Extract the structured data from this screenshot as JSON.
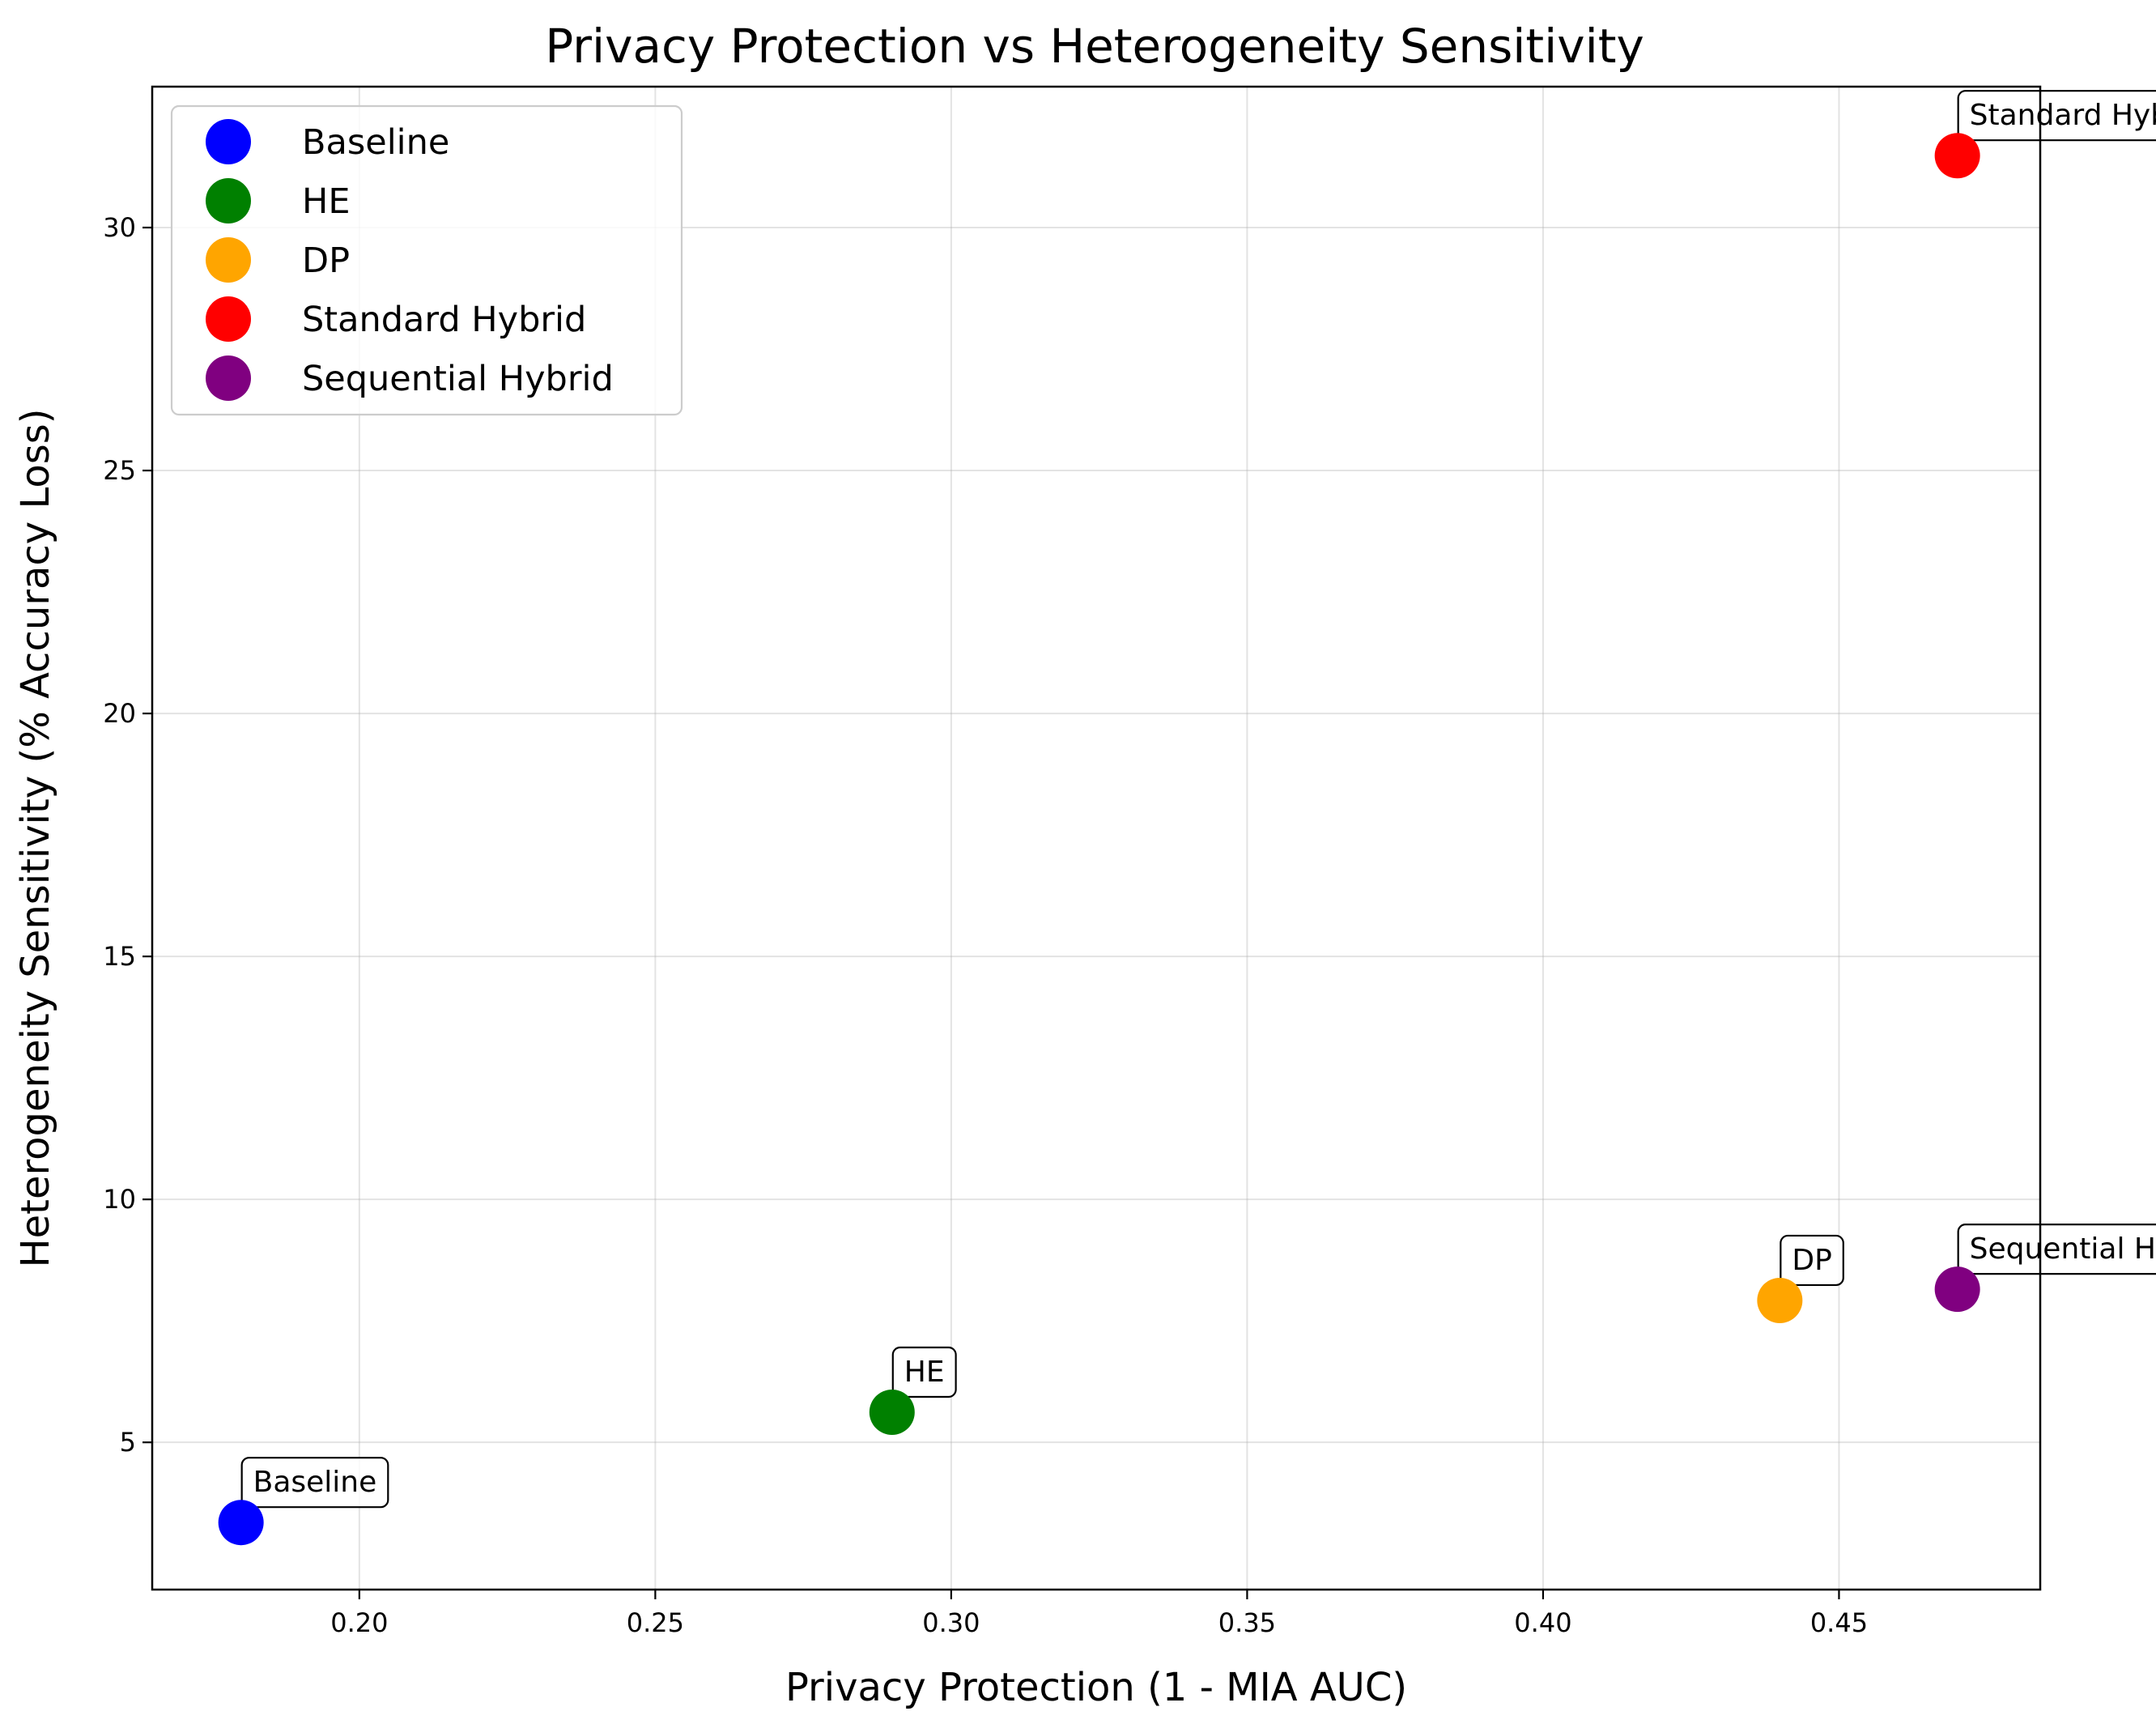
{
  "chart_data": {
    "type": "scatter",
    "title": "Privacy Protection vs Heterogeneity Sensitivity",
    "xlabel": "Privacy Protection (1 - MIA AUC)",
    "ylabel": "Heterogeneity Sensitivity (% Accuracy Loss)",
    "xlim": [
      0.165,
      0.484
    ],
    "ylim": [
      1.97,
      32.9
    ],
    "xticks": [
      0.2,
      0.25,
      0.3,
      0.35,
      0.4,
      0.45
    ],
    "xtick_labels": [
      "0.20",
      "0.25",
      "0.30",
      "0.35",
      "0.40",
      "0.45"
    ],
    "yticks": [
      5,
      10,
      15,
      20,
      25,
      30
    ],
    "ytick_labels": [
      "5",
      "10",
      "15",
      "20",
      "25",
      "30"
    ],
    "grid": true,
    "legend_position": "top-left",
    "series": [
      {
        "name": "Baseline",
        "color": "#0000ff",
        "x": 0.18,
        "y": 3.35,
        "annotation": "Baseline"
      },
      {
        "name": "HE",
        "color": "#008000",
        "x": 0.29,
        "y": 5.62,
        "annotation": "HE"
      },
      {
        "name": "DP",
        "color": "#ffa500",
        "x": 0.44,
        "y": 7.92,
        "annotation": "DP"
      },
      {
        "name": "Standard Hybrid",
        "color": "#ff0000",
        "x": 0.47,
        "y": 31.48,
        "annotation": "Standard Hybrid"
      },
      {
        "name": "Sequential Hybrid",
        "color": "#800080",
        "x": 0.47,
        "y": 8.15,
        "annotation": "Sequential Hybrid"
      }
    ]
  }
}
